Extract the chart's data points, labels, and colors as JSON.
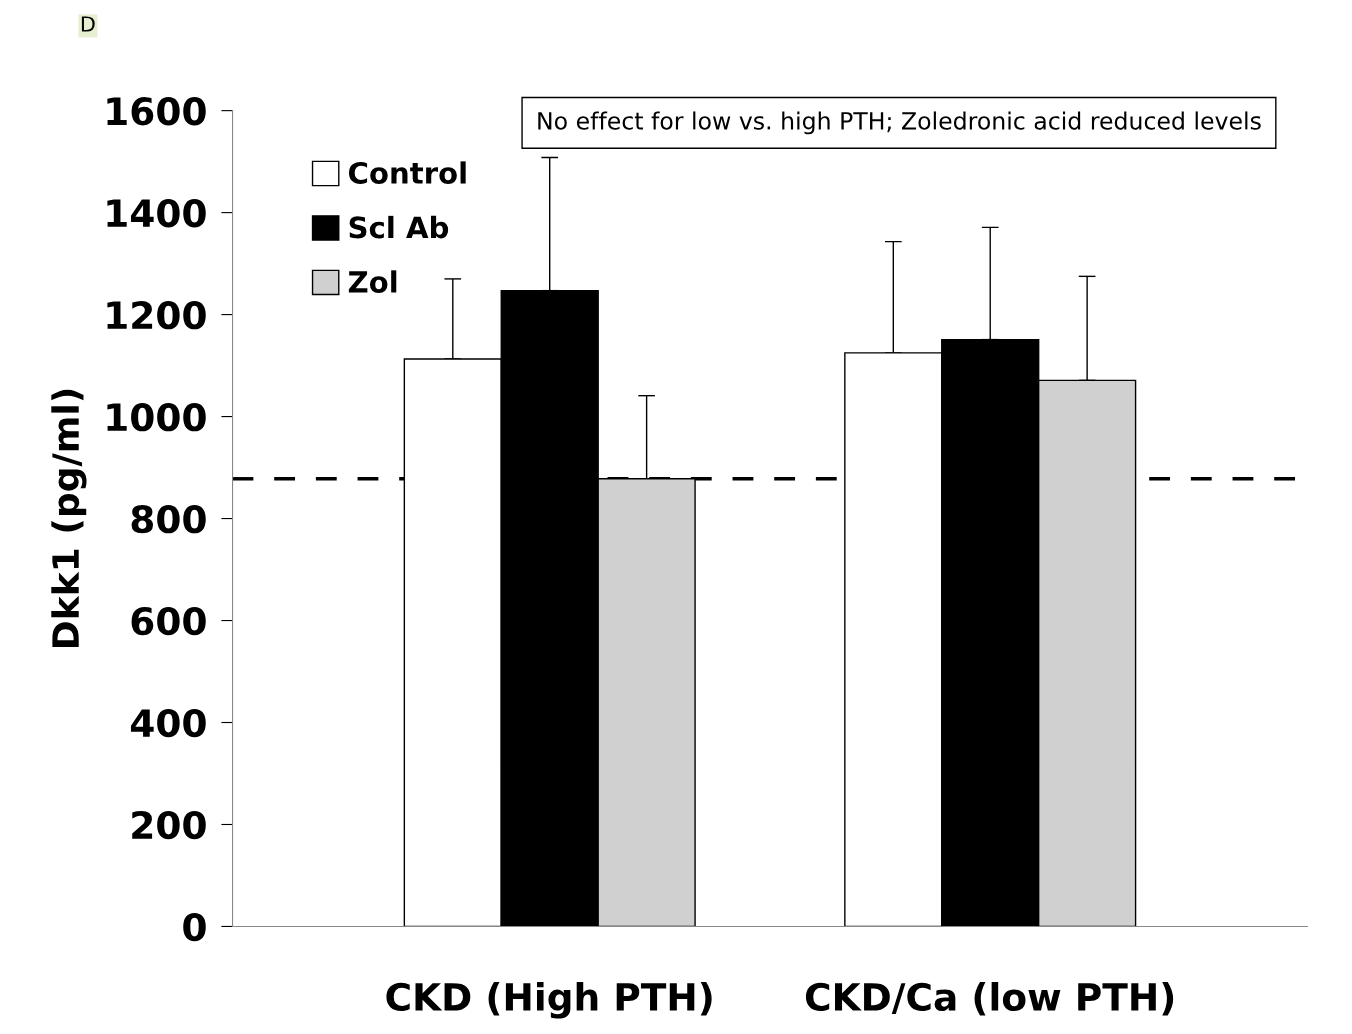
{
  "chart_data": {
    "type": "bar",
    "ylabel": "Dkk1 (pg/ml)",
    "categories": [
      "CKD (High PTH)",
      "CKD/Ca (low PTH)"
    ],
    "series": [
      {
        "name": "Control",
        "color": "#ffffff",
        "values": [
          1113,
          1125
        ],
        "errors": [
          [
            1113,
            1270
          ],
          [
            1125,
            1343
          ]
        ]
      },
      {
        "name": "Scl Ab",
        "color": "#000000",
        "values": [
          1247,
          1151
        ],
        "errors": [
          [
            1247,
            1508
          ],
          [
            1151,
            1371
          ]
        ]
      },
      {
        "name": "Zol",
        "color": "#d0d0d0",
        "values": [
          878,
          1071
        ],
        "errors": [
          [
            878,
            1041
          ],
          [
            1071,
            1275
          ]
        ]
      }
    ],
    "ylim": [
      0,
      1600
    ],
    "yticks": [
      0,
      200,
      400,
      600,
      800,
      1000,
      1200,
      1400,
      1600
    ],
    "ref_lines": [
      {
        "axis": "y",
        "value": 878,
        "line_style": "dashed",
        "color": "#000000"
      }
    ],
    "annotations": [
      "D",
      "No effect for low vs. high PTH; Zoledronic acid reduced levels"
    ],
    "grid": false,
    "legend": "top left"
  }
}
